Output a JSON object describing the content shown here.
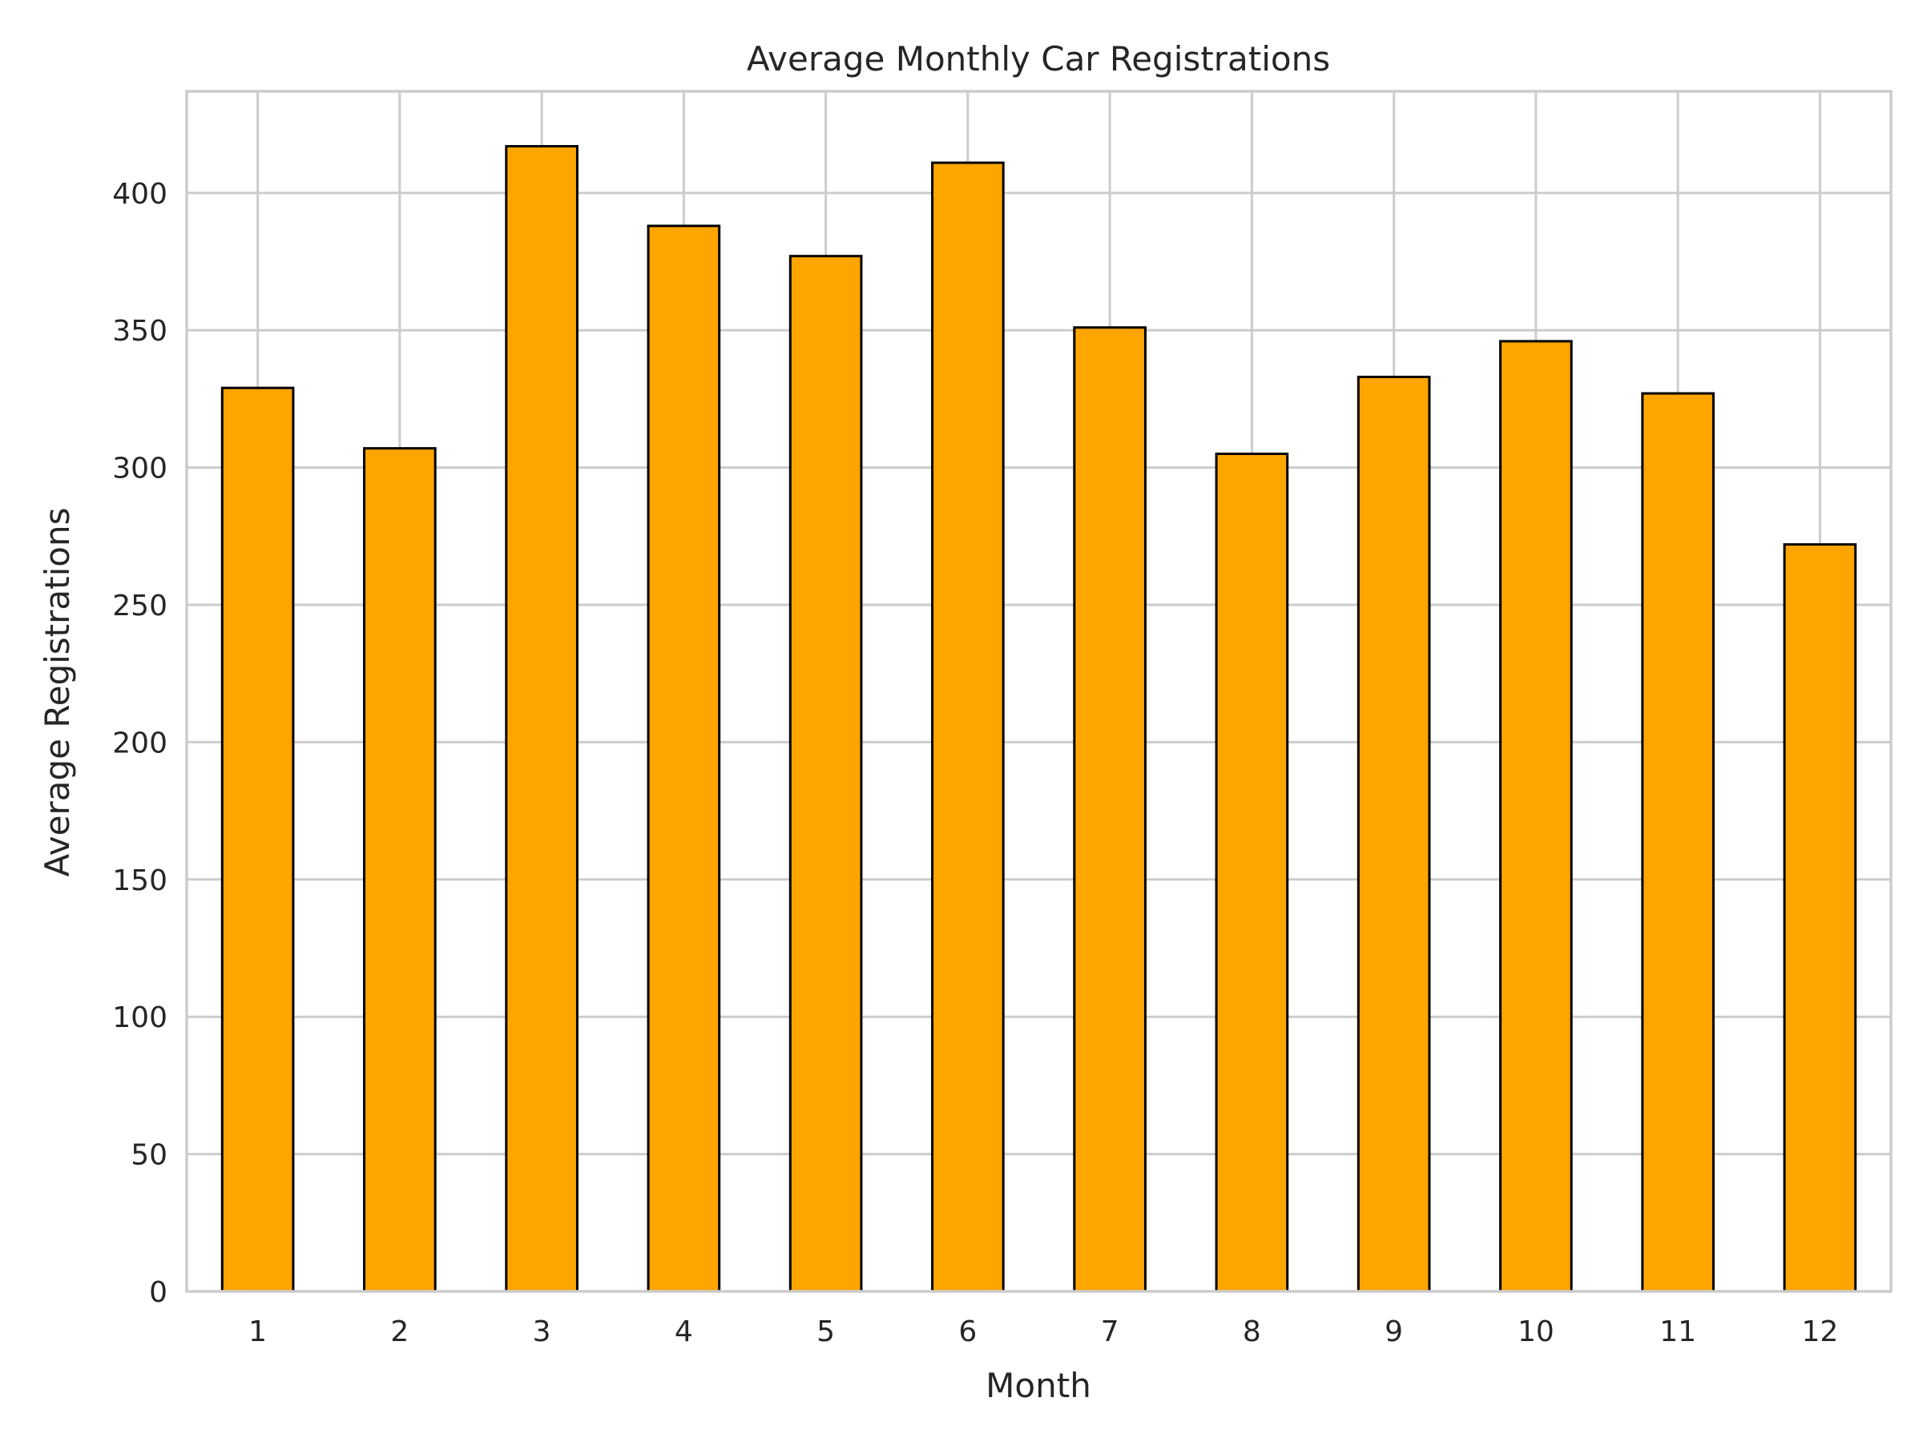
{
  "chart_data": {
    "type": "bar",
    "title": "Average Monthly Car Registrations",
    "xlabel": "Month",
    "ylabel": "Average Registrations",
    "categories": [
      "1",
      "2",
      "3",
      "4",
      "5",
      "6",
      "7",
      "8",
      "9",
      "10",
      "11",
      "12"
    ],
    "values": [
      329,
      307,
      417,
      388,
      377,
      411,
      351,
      305,
      333,
      346,
      327,
      272
    ],
    "ylim": [
      0,
      437
    ],
    "yticks": [
      0,
      50,
      100,
      150,
      200,
      250,
      300,
      350,
      400
    ],
    "grid": true,
    "legend": "none",
    "colors": {
      "bar_fill": "#FFA500",
      "bar_edge": "#000000",
      "grid": "#cccccc",
      "frame": "#cccccc",
      "text": "#262626"
    }
  }
}
